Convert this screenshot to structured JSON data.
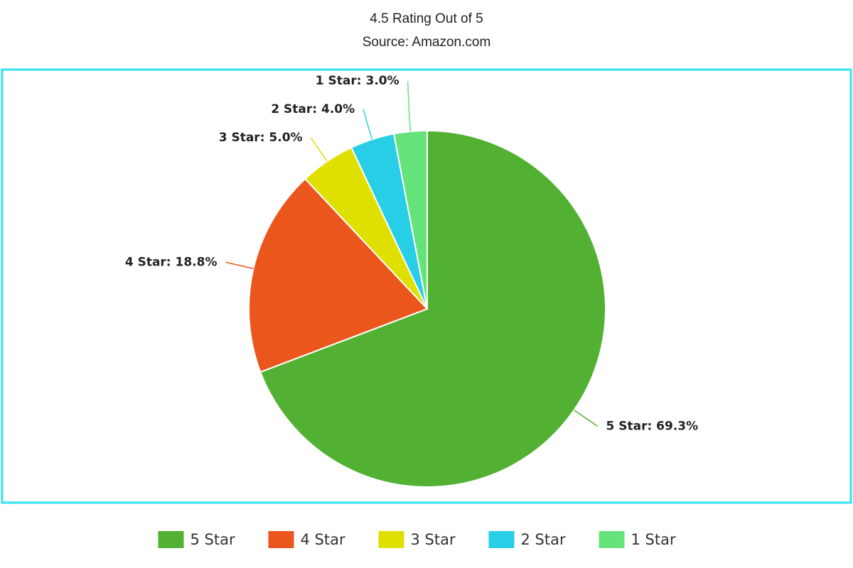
{
  "chart_data": {
    "type": "pie",
    "title": "4.5 Rating Out of 5",
    "subtitle": "Source: Amazon.com",
    "categories": [
      "5 Star",
      "4 Star",
      "3 Star",
      "2 Star",
      "1 Star"
    ],
    "values": [
      69.3,
      18.8,
      5,
      4,
      3
    ],
    "value_labels": [
      "5 Star: 69.3%",
      "4 Star: 18.8%",
      "3 Star: 5.0%",
      "2 Star: 4.0%",
      "1 Star: 3.0%"
    ],
    "colors": [
      "#52b132",
      "#eb561d",
      "#dfdf00",
      "#28cde6",
      "#66e27a"
    ],
    "legend": "bottom"
  }
}
